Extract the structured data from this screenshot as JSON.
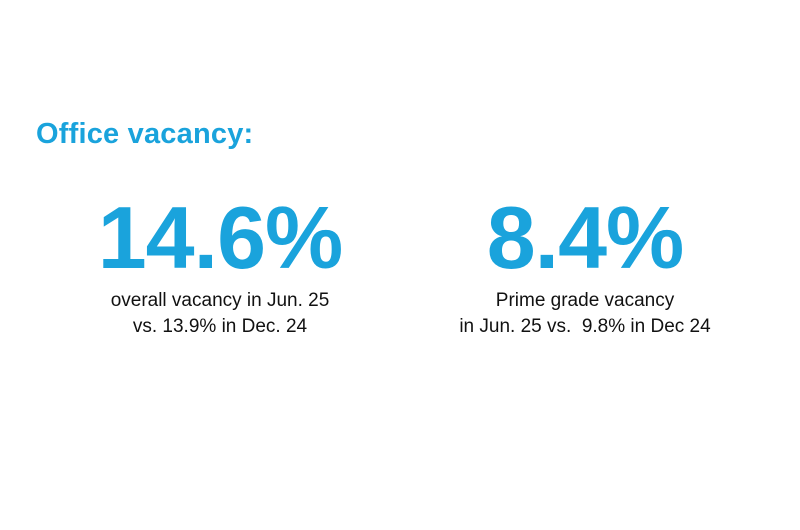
{
  "heading": "Office vacancy:",
  "stats": [
    {
      "value": "14.6%",
      "caption_line1": "overall vacancy in Jun. 25",
      "caption_line2": "vs. 13.9% in Dec. 24"
    },
    {
      "value": "8.4%",
      "caption_line1": "Prime grade vacancy",
      "caption_line2": "in Jun. 25 vs.  9.8% in Dec 24"
    }
  ],
  "colors": {
    "accent": "#1aa3dc",
    "text": "#111111",
    "background": "#ffffff"
  }
}
